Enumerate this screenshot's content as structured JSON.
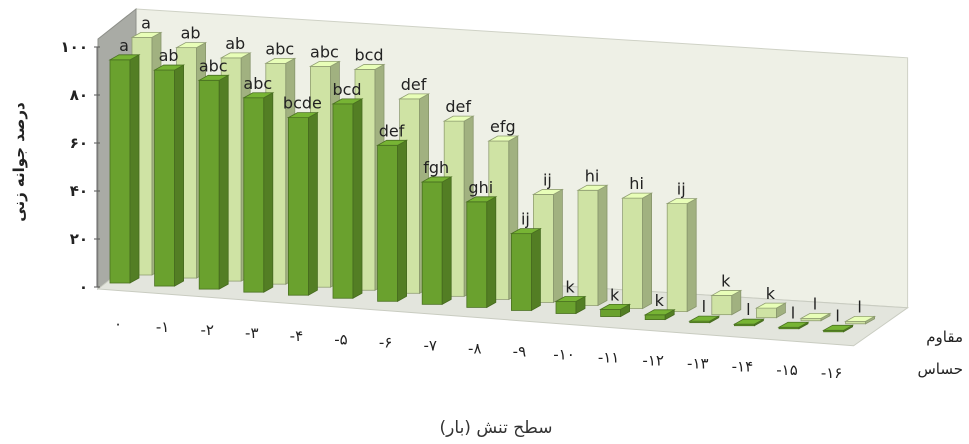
{
  "chart_data": {
    "type": "bar",
    "title": "",
    "xlabel": "سطح تنش (بار)",
    "ylabel": "درصد جوانه زنی",
    "ylim": [
      0,
      100
    ],
    "yticks": [
      "۰",
      "۲۰",
      "۴۰",
      "۶۰",
      "۸۰",
      "۱۰۰"
    ],
    "ytick_values": [
      0,
      20,
      40,
      60,
      80,
      100
    ],
    "categories": [
      "۰",
      "-۱",
      "-۲",
      "-۳",
      "-۴",
      "-۵",
      "-۶",
      "-۷",
      "-۸",
      "-۹",
      "-۱۰",
      "-۱۱",
      "-۱۲",
      "-۱۳",
      "-۱۴",
      "-۱۵",
      "-۱۶"
    ],
    "series": [
      {
        "name": "حساس",
        "color": "#6aa12e",
        "values": [
          93,
          90,
          87,
          81,
          74,
          81,
          65,
          51,
          44,
          32,
          5,
          3,
          2,
          0,
          0,
          0,
          0
        ],
        "labels": [
          "a",
          "ab",
          "abc",
          "abc",
          "bcde",
          "bcd",
          "def",
          "fgh",
          "ghi",
          "ij",
          "k",
          "k",
          "k",
          "l",
          "l",
          "l",
          "l"
        ]
      },
      {
        "name": "مقاوم",
        "color": "#cfe3a4",
        "values": [
          99,
          96,
          93,
          92,
          92,
          92,
          81,
          73,
          66,
          45,
          48,
          46,
          45,
          8,
          4,
          1,
          1
        ],
        "labels": [
          "a",
          "ab",
          "ab",
          "abc",
          "abc",
          "bcd",
          "def",
          "def",
          "efg",
          "ij",
          "hi",
          "hi",
          "ij",
          "k",
          "k",
          "l",
          "l"
        ]
      }
    ],
    "legend": [
      "مقاوم",
      "حساس"
    ],
    "legend_placement": "right",
    "grid": false
  }
}
